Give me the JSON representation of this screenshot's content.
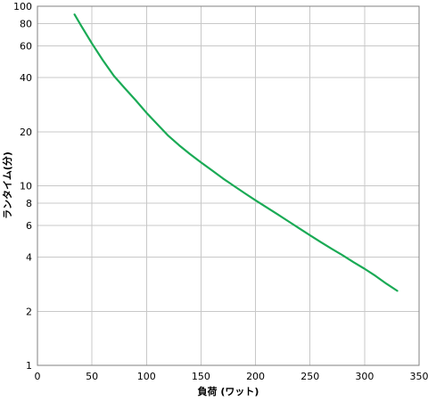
{
  "chart_data": {
    "type": "line",
    "title": "",
    "xlabel": "負荷 (ワット)",
    "ylabel": "ランタイム(分)",
    "xlim": [
      0,
      350
    ],
    "ylim": [
      1,
      100
    ],
    "yscale": "log",
    "grid": true,
    "legend": "none",
    "x_ticks": [
      0,
      50,
      100,
      150,
      200,
      250,
      300,
      350
    ],
    "y_ticks": [
      1,
      2,
      4,
      6,
      8,
      10,
      20,
      40,
      60,
      80,
      100
    ],
    "series": [
      {
        "color": "#1aaa55",
        "points": [
          [
            34,
            90
          ],
          [
            40,
            78
          ],
          [
            50,
            62
          ],
          [
            60,
            50
          ],
          [
            70,
            41
          ],
          [
            80,
            35
          ],
          [
            90,
            30
          ],
          [
            100,
            25.5
          ],
          [
            110,
            22
          ],
          [
            120,
            19
          ],
          [
            130,
            16.8
          ],
          [
            140,
            15
          ],
          [
            150,
            13.5
          ],
          [
            160,
            12.2
          ],
          [
            170,
            11
          ],
          [
            180,
            10
          ],
          [
            190,
            9.1
          ],
          [
            200,
            8.3
          ],
          [
            210,
            7.6
          ],
          [
            220,
            6.95
          ],
          [
            230,
            6.35
          ],
          [
            240,
            5.8
          ],
          [
            250,
            5.3
          ],
          [
            260,
            4.85
          ],
          [
            270,
            4.45
          ],
          [
            280,
            4.1
          ],
          [
            290,
            3.75
          ],
          [
            300,
            3.45
          ],
          [
            310,
            3.15
          ],
          [
            320,
            2.85
          ],
          [
            330,
            2.6
          ]
        ]
      }
    ]
  }
}
